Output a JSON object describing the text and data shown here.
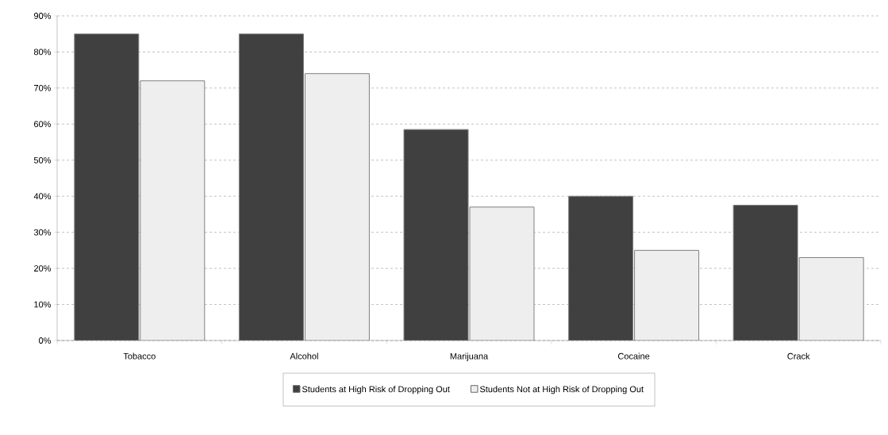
{
  "chart_data": {
    "type": "bar",
    "categories": [
      "Tobacco",
      "Alcohol",
      "Marijuana",
      "Cocaine",
      "Crack"
    ],
    "series": [
      {
        "name": "Students at High Risk of Dropping Out",
        "color": "#404040",
        "values": [
          85,
          85,
          58.5,
          40,
          37.5
        ]
      },
      {
        "name": "Students Not at High Risk of Dropping Out",
        "color": "#eeeeee",
        "values": [
          72,
          74,
          37,
          25,
          23
        ]
      }
    ],
    "ylim": [
      0,
      90
    ],
    "yticks": [
      {
        "value": 0,
        "label": "0%"
      },
      {
        "value": 10,
        "label": "10%"
      },
      {
        "value": 20,
        "label": "20%"
      },
      {
        "value": 30,
        "label": "30%"
      },
      {
        "value": 40,
        "label": "40%"
      },
      {
        "value": 50,
        "label": "50%"
      },
      {
        "value": 60,
        "label": "60%"
      },
      {
        "value": 70,
        "label": "70%"
      },
      {
        "value": 80,
        "label": "80%"
      },
      {
        "value": 90,
        "label": "90%"
      }
    ],
    "grid": "y",
    "legend": "bottom"
  }
}
